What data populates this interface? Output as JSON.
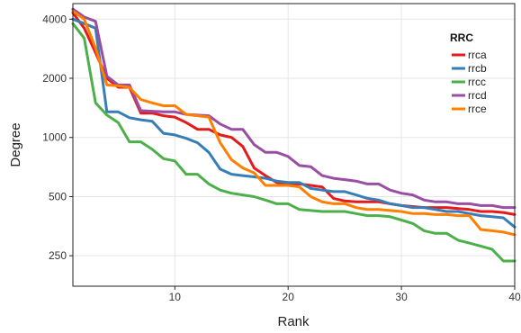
{
  "chart_data": {
    "type": "line",
    "xlabel": "Rank",
    "ylabel": "Degree",
    "xlim": [
      1,
      40
    ],
    "ylim": [
      175,
      4800
    ],
    "yscale": "log",
    "xticks": [
      10,
      20,
      30,
      40
    ],
    "yticks": [
      250,
      500,
      1000,
      2000,
      4000
    ],
    "grid": true,
    "legend": {
      "title": "RRC",
      "position": "top-right"
    },
    "x": [
      1,
      2,
      3,
      4,
      5,
      6,
      7,
      8,
      9,
      10,
      11,
      12,
      13,
      14,
      15,
      16,
      17,
      18,
      19,
      20,
      21,
      22,
      23,
      24,
      25,
      26,
      27,
      28,
      29,
      30,
      31,
      32,
      33,
      34,
      35,
      36,
      37,
      38,
      39,
      40
    ],
    "series": [
      {
        "name": "rrca",
        "color": "#e41a1c",
        "values": [
          4300,
          3600,
          2700,
          2000,
          1800,
          1800,
          1330,
          1330,
          1290,
          1270,
          1190,
          1100,
          1100,
          1030,
          1000,
          900,
          700,
          640,
          590,
          580,
          580,
          570,
          560,
          490,
          475,
          470,
          470,
          470,
          460,
          450,
          445,
          440,
          440,
          440,
          435,
          430,
          420,
          420,
          415,
          405
        ]
      },
      {
        "name": "rrcb",
        "color": "#377eb8",
        "values": [
          4000,
          3800,
          3600,
          1350,
          1350,
          1260,
          1230,
          1210,
          1050,
          1030,
          990,
          940,
          840,
          690,
          650,
          640,
          630,
          620,
          600,
          590,
          590,
          550,
          540,
          530,
          530,
          510,
          490,
          480,
          460,
          450,
          440,
          440,
          430,
          420,
          420,
          410,
          400,
          395,
          390,
          350
        ]
      },
      {
        "name": "rrcc",
        "color": "#4daf4a",
        "values": [
          3800,
          3200,
          1500,
          1300,
          1190,
          950,
          950,
          870,
          780,
          760,
          650,
          650,
          580,
          540,
          520,
          510,
          500,
          480,
          460,
          460,
          430,
          425,
          420,
          420,
          420,
          410,
          400,
          400,
          395,
          380,
          365,
          335,
          325,
          325,
          300,
          290,
          280,
          270,
          235,
          235
        ]
      },
      {
        "name": "rrcd",
        "color": "#984ea3",
        "values": [
          4500,
          4100,
          3900,
          2050,
          1850,
          1850,
          1370,
          1360,
          1350,
          1350,
          1310,
          1300,
          1290,
          1170,
          1100,
          1100,
          920,
          840,
          840,
          800,
          720,
          710,
          640,
          620,
          610,
          600,
          580,
          580,
          540,
          520,
          510,
          480,
          470,
          470,
          460,
          460,
          450,
          450,
          440,
          440
        ]
      },
      {
        "name": "rrce",
        "color": "#ff7f00",
        "values": [
          4400,
          4000,
          2850,
          1850,
          1830,
          1800,
          1560,
          1500,
          1450,
          1450,
          1310,
          1290,
          1270,
          940,
          770,
          700,
          660,
          570,
          570,
          570,
          560,
          500,
          470,
          460,
          460,
          440,
          430,
          430,
          425,
          420,
          410,
          410,
          405,
          405,
          400,
          400,
          340,
          335,
          330,
          320
        ]
      }
    ]
  }
}
